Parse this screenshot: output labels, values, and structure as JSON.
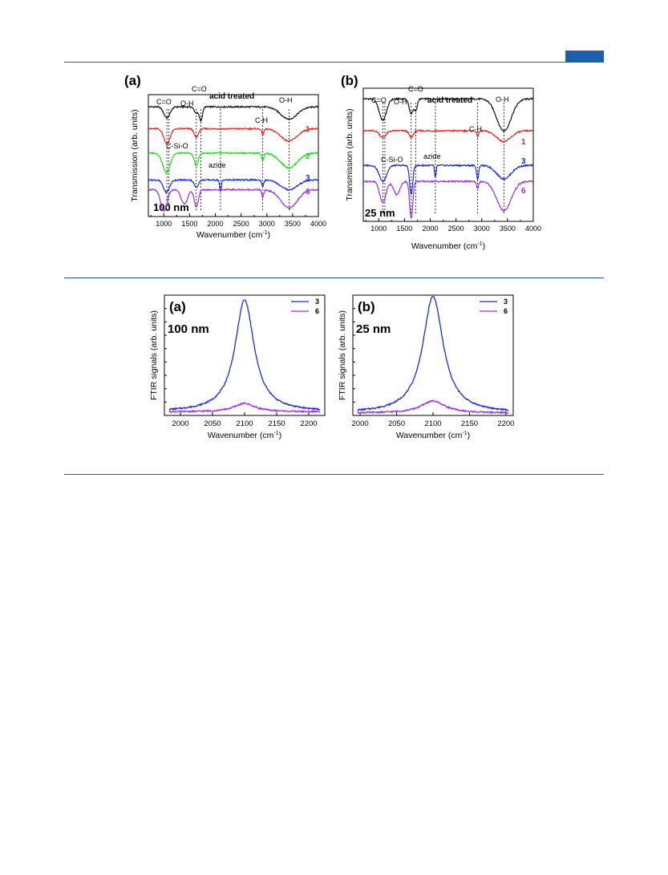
{
  "colors": {
    "rule": "#1f5ea8",
    "acid": "#111111",
    "s1": "#e8261f",
    "s2": "#1ddc18",
    "s3": "#1b2bd6",
    "s6": "#9a2fe0"
  },
  "figure1": {
    "panel_a": {
      "letter": "(a)",
      "size_label": "100 nm",
      "peak_labels": [
        "C=O",
        "O-H",
        "C=O",
        "O-H",
        "C-H",
        "C-Si-O",
        "azide"
      ],
      "series_labels": [
        "acid treated",
        "1",
        "2",
        "3",
        "6"
      ]
    },
    "panel_b": {
      "letter": "(b)",
      "size_label": "25 nm",
      "peak_labels": [
        "C=O",
        "O-H",
        "C=O",
        "O-H",
        "C-H",
        "C-Si-O",
        "azide"
      ],
      "series_labels": [
        "acid treated",
        "1",
        "3",
        "6"
      ]
    }
  },
  "figure2": {
    "panel_a": {
      "letter": "(a)",
      "size_label": "100 nm"
    },
    "panel_b": {
      "letter": "(b)",
      "size_label": "25 nm"
    }
  },
  "chart_data": [
    {
      "type": "line",
      "title": "(a)",
      "annotation": "100 nm",
      "xlabel": "Wavenumber (cm⁻¹)",
      "ylabel": "Transmission (arb. units)",
      "xlim": [
        700,
        4000
      ],
      "xticks": [
        1000,
        1500,
        2000,
        2500,
        3000,
        3500,
        4000
      ],
      "grid": false,
      "peak_markers": [
        {
          "label": "C=O",
          "x": 1060
        },
        {
          "label": "C-Si-O",
          "x": 1100
        },
        {
          "label": "O-H",
          "x": 1630
        },
        {
          "label": "C=O",
          "x": 1720
        },
        {
          "label": "azide",
          "x": 2100
        },
        {
          "label": "C-H",
          "x": 2920
        },
        {
          "label": "O-H",
          "x": 3430
        }
      ],
      "series": [
        {
          "name": "acid treated",
          "color": "#111111",
          "baseline": 0.9,
          "peaks": [
            [
              1060,
              0.09,
              60
            ],
            [
              1630,
              0.05,
              40
            ],
            [
              1720,
              0.11,
              30
            ],
            [
              3430,
              0.1,
              160
            ]
          ]
        },
        {
          "name": "1",
          "color": "#e8261f",
          "baseline": 0.72,
          "peaks": [
            [
              1060,
              0.12,
              60
            ],
            [
              1630,
              0.07,
              40
            ],
            [
              2920,
              0.05,
              20
            ],
            [
              3430,
              0.1,
              160
            ]
          ]
        },
        {
          "name": "2",
          "color": "#1ddc18",
          "baseline": 0.52,
          "peaks": [
            [
              1050,
              0.16,
              70
            ],
            [
              1630,
              0.1,
              40
            ],
            [
              2920,
              0.06,
              20
            ],
            [
              3430,
              0.12,
              160
            ]
          ]
        },
        {
          "name": "3",
          "color": "#1b2bd6",
          "baseline": 0.3,
          "peaks": [
            [
              1050,
              0.1,
              60
            ],
            [
              1630,
              0.06,
              40
            ],
            [
              2100,
              0.1,
              15
            ],
            [
              2920,
              0.05,
              20
            ],
            [
              3430,
              0.08,
              160
            ]
          ]
        },
        {
          "name": "6",
          "color": "#9a2fe0",
          "baseline": 0.22,
          "peaks": [
            [
              1000,
              0.18,
              60
            ],
            [
              1400,
              0.12,
              60
            ],
            [
              1630,
              0.14,
              40
            ],
            [
              2920,
              0.06,
              20
            ],
            [
              3430,
              0.15,
              160
            ]
          ]
        }
      ]
    },
    {
      "type": "line",
      "title": "(b)",
      "annotation": "25 nm",
      "xlabel": "Wavenumber (cm⁻¹)",
      "ylabel": "Transmission (arb. units)",
      "xlim": [
        700,
        4000
      ],
      "xticks": [
        1000,
        1500,
        2000,
        2500,
        3000,
        3500,
        4000
      ],
      "grid": false,
      "peak_markers": [
        {
          "label": "C=O",
          "x": 1080
        },
        {
          "label": "C-Si-O",
          "x": 1120
        },
        {
          "label": "O-H",
          "x": 1630
        },
        {
          "label": "C=O",
          "x": 1720
        },
        {
          "label": "azide",
          "x": 2100
        },
        {
          "label": "C-H",
          "x": 2920
        },
        {
          "label": "O-H",
          "x": 3430
        }
      ],
      "series": [
        {
          "name": "acid treated",
          "color": "#111111",
          "baseline": 0.92,
          "peaks": [
            [
              1080,
              0.16,
              70
            ],
            [
              1630,
              0.11,
              40
            ],
            [
              1720,
              0.08,
              30
            ],
            [
              3430,
              0.24,
              140
            ]
          ]
        },
        {
          "name": "1",
          "color": "#e8261f",
          "baseline": 0.68,
          "peaks": [
            [
              1080,
              0.05,
              60
            ],
            [
              1630,
              0.05,
              40
            ],
            [
              2920,
              0.04,
              20
            ],
            [
              3430,
              0.08,
              140
            ]
          ]
        },
        {
          "name": "3",
          "color": "#1b2bd6",
          "baseline": 0.42,
          "peaks": [
            [
              1080,
              0.12,
              70
            ],
            [
              1630,
              0.22,
              30
            ],
            [
              2100,
              0.09,
              15
            ],
            [
              2920,
              0.1,
              20
            ],
            [
              3430,
              0.1,
              140
            ]
          ]
        },
        {
          "name": "6",
          "color": "#9a2fe0",
          "baseline": 0.3,
          "peaks": [
            [
              1080,
              0.16,
              60
            ],
            [
              1350,
              0.1,
              60
            ],
            [
              1630,
              0.28,
              30
            ],
            [
              2920,
              0.05,
              20
            ],
            [
              3430,
              0.22,
              140
            ]
          ]
        }
      ]
    },
    {
      "type": "line",
      "title": "(a)",
      "annotation": "100 nm",
      "xlabel": "Wavenumber (cm⁻¹)",
      "ylabel": "FTIR signals (arb. units)",
      "xlim": [
        1975,
        2225
      ],
      "xticks": [
        2000,
        2050,
        2100,
        2150,
        2200
      ],
      "grid": false,
      "legend": "top-right",
      "series": [
        {
          "name": "3",
          "color": "#1b2bd6",
          "center": 2100,
          "height": 0.93,
          "width": 18,
          "baseline": 0.03
        },
        {
          "name": "6",
          "color": "#9a2fe0",
          "center": 2100,
          "height": 0.07,
          "width": 20,
          "baseline": 0.03
        }
      ]
    },
    {
      "type": "line",
      "title": "(b)",
      "annotation": "25 nm",
      "xlabel": "Wavenumber (cm⁻¹)",
      "ylabel": "FTIR signals (arb. units)",
      "xlim": [
        1990,
        2210
      ],
      "xticks": [
        2000,
        2050,
        2100,
        2150,
        2200
      ],
      "grid": false,
      "legend": "top-right",
      "series": [
        {
          "name": "3",
          "color": "#1b2bd6",
          "center": 2100,
          "height": 0.97,
          "width": 17,
          "baseline": 0.02
        },
        {
          "name": "6",
          "color": "#9a2fe0",
          "center": 2100,
          "height": 0.1,
          "width": 20,
          "baseline": 0.02
        }
      ]
    }
  ]
}
